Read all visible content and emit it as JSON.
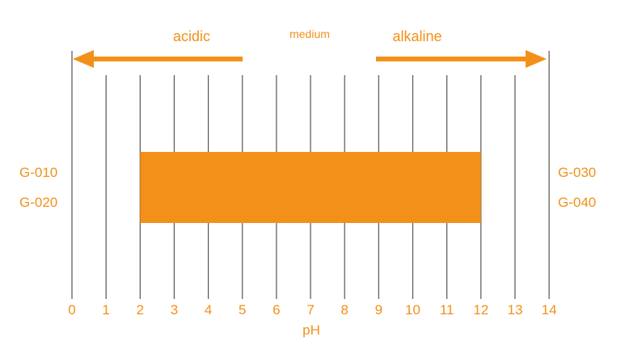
{
  "labels": {
    "acidic": "acidic",
    "medium": "medium",
    "alkaline": "alkaline",
    "axis": "pH"
  },
  "products_left": [
    "G-010",
    "G-020"
  ],
  "products_right": [
    "G-030",
    "G-040"
  ],
  "ph_ticks": [
    "0",
    "1",
    "2",
    "3",
    "4",
    "5",
    "6",
    "7",
    "8",
    "9",
    "10",
    "11",
    "12",
    "13",
    "14"
  ],
  "range": {
    "min": 2,
    "max": 12
  },
  "colors": {
    "accent": "#F39019",
    "grid": "#555555",
    "background": "#ffffff"
  }
}
